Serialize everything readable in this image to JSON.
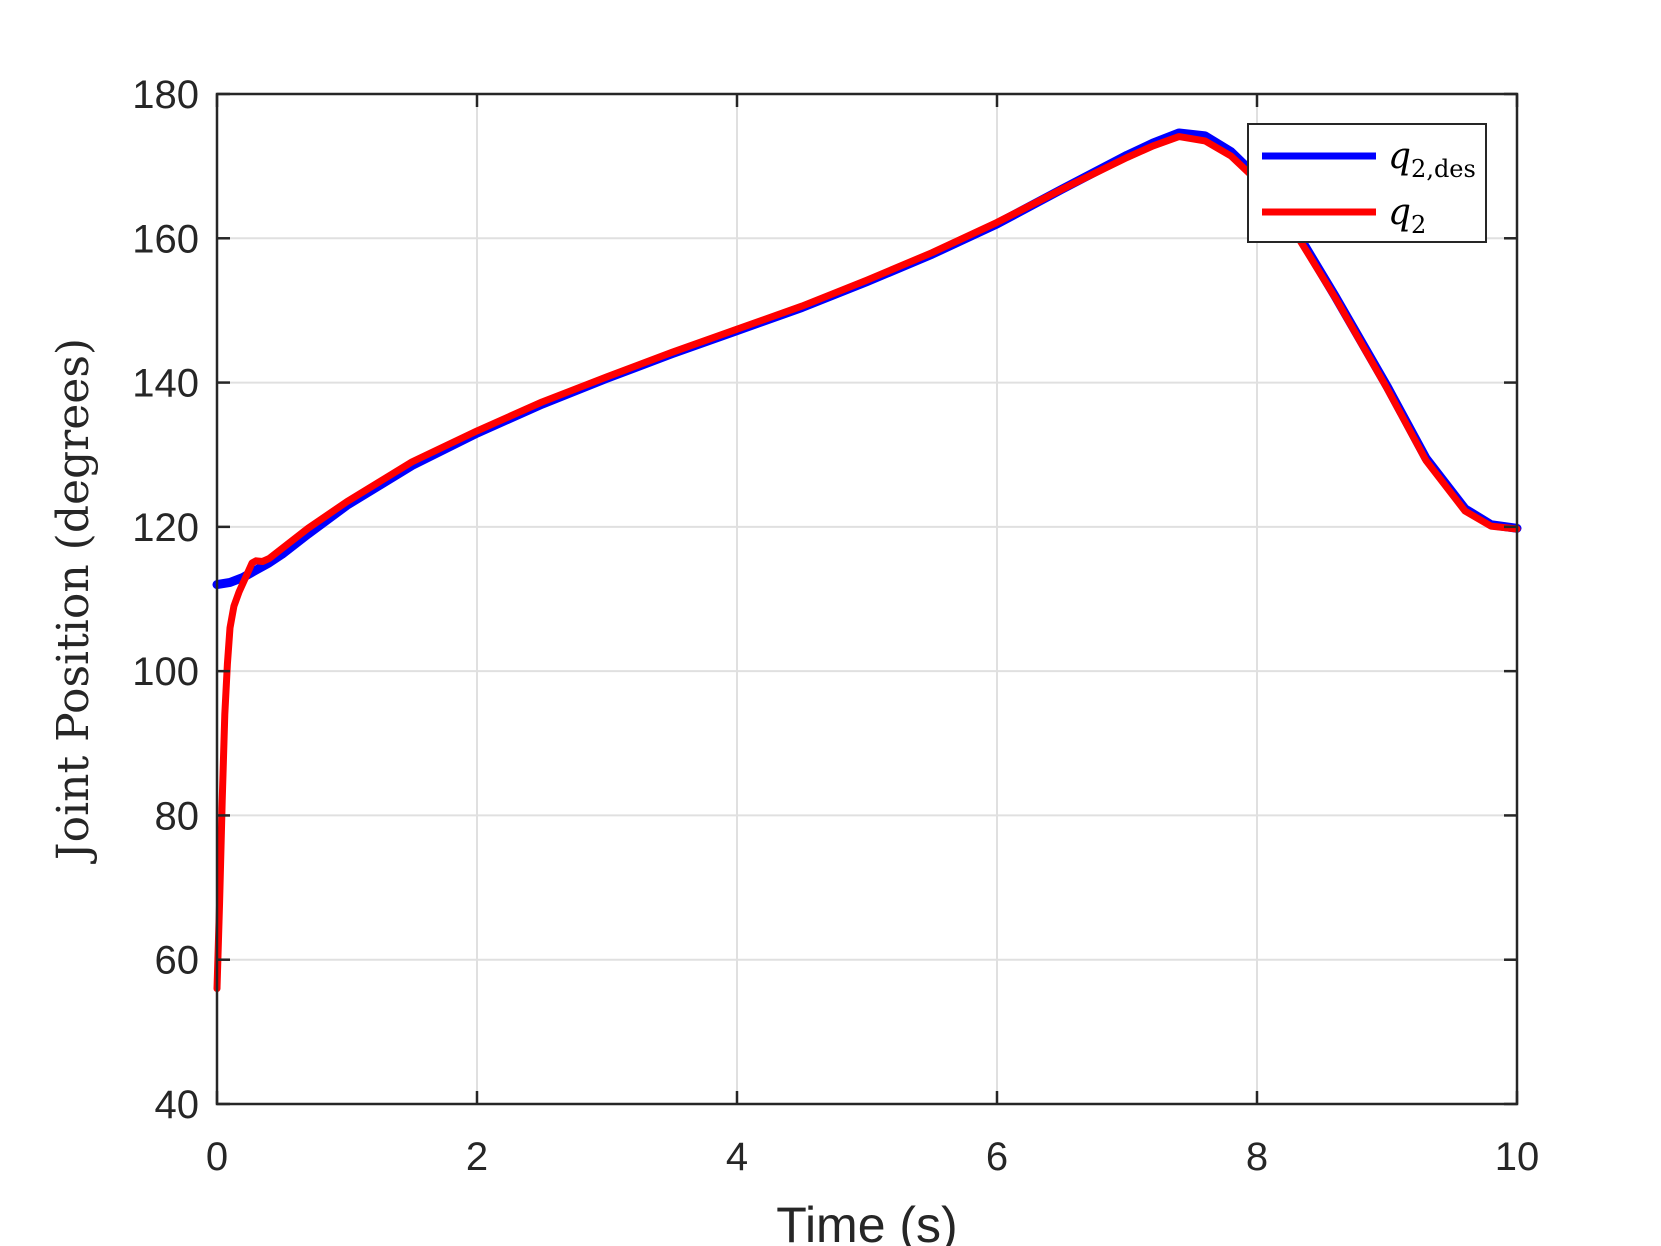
{
  "chart_data": {
    "type": "line",
    "title": "",
    "xlabel": "Time (s)",
    "ylabel": "Joint Position (degrees)",
    "xlim": [
      0,
      10
    ],
    "ylim": [
      40,
      180
    ],
    "xticks": [
      0,
      2,
      4,
      6,
      8,
      10
    ],
    "yticks": [
      40,
      60,
      80,
      100,
      120,
      140,
      160,
      180
    ],
    "grid": true,
    "legend_position": "top-right",
    "series": [
      {
        "name": "q2,des",
        "legend_main": "q",
        "legend_sub": "2,des",
        "color": "#0000ff",
        "x": [
          0,
          0.1,
          0.2,
          0.3,
          0.4,
          0.5,
          0.7,
          1.0,
          1.5,
          2.0,
          2.5,
          3.0,
          3.5,
          4.0,
          4.5,
          5.0,
          5.5,
          6.0,
          6.5,
          7.0,
          7.2,
          7.4,
          7.6,
          7.8,
          8.0,
          8.3,
          8.6,
          9.0,
          9.3,
          9.6,
          9.8,
          10.0
        ],
        "y": [
          112,
          112.3,
          113,
          114,
          115,
          116.2,
          119,
          123,
          128.5,
          133,
          137,
          140.6,
          144,
          147.2,
          150.4,
          154,
          157.8,
          162,
          166.8,
          171.5,
          173.2,
          174.6,
          174.2,
          172,
          168.5,
          161,
          152,
          139.5,
          129.5,
          122.5,
          120.3,
          119.8
        ]
      },
      {
        "name": "q2",
        "legend_main": "q",
        "legend_sub": "2",
        "color": "#ff0000",
        "x": [
          0,
          0.02,
          0.04,
          0.06,
          0.08,
          0.1,
          0.13,
          0.17,
          0.22,
          0.27,
          0.3,
          0.35,
          0.4,
          0.5,
          0.7,
          1.0,
          1.5,
          2.0,
          2.5,
          3.0,
          3.5,
          4.0,
          4.5,
          5.0,
          5.5,
          6.0,
          6.5,
          7.0,
          7.2,
          7.4,
          7.6,
          7.8,
          8.0,
          8.3,
          8.6,
          9.0,
          9.3,
          9.6,
          9.8,
          10.0
        ],
        "y": [
          56,
          68,
          82,
          94,
          101,
          106,
          109,
          111,
          113,
          115,
          115.3,
          115.2,
          115.6,
          117,
          119.8,
          123.5,
          129,
          133.3,
          137.3,
          140.8,
          144.2,
          147.4,
          150.6,
          154.2,
          158,
          162.2,
          166.8,
          171.2,
          172.8,
          174.1,
          173.5,
          171.4,
          168,
          160.6,
          151.8,
          139.2,
          129.2,
          122.2,
          120.1,
          119.7
        ]
      }
    ]
  }
}
